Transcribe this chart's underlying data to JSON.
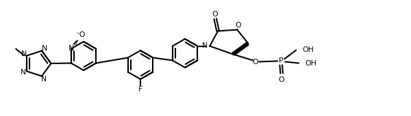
{
  "bg": "#ffffff",
  "lc": "#000000",
  "lw": 1.5,
  "fs": 7.8,
  "dg": 0.018,
  "fig_w": 6.0,
  "fig_h": 1.7,
  "dpi": 100,
  "xlim": [
    0.0,
    6.0
  ],
  "ylim": [
    0.05,
    1.75
  ]
}
